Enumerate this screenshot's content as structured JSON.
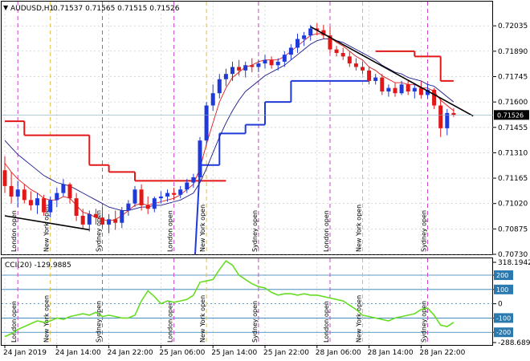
{
  "header": {
    "symbol": "AUDUSD,H1",
    "ohlc": "0.71537 0.71565 0.71515 0.71526"
  },
  "colors": {
    "bull": "#1f3ad8",
    "bear": "#e01818",
    "ma_fast": "#e01818",
    "ma_slow": "#1a1a8c",
    "stop_upper": "#e01818",
    "stop_lower": "#1f3ad8",
    "trendline": "#000000",
    "cci_line": "#66dd22",
    "cci_level": "#2a7ab0",
    "london_separator": "#cc44cc",
    "newyork_separator": "#e0c040",
    "sydney_separator": "#cc44cc",
    "grid": "#c0c0c0",
    "current_price_bg": "#000000"
  },
  "chart_data": [
    {
      "type": "candlestick",
      "title": "AUDUSD,H1",
      "y_ticks": [
        "0.72035",
        "0.71890",
        "0.71745",
        "0.71600",
        "0.71455",
        "0.71310",
        "0.71165",
        "0.71020",
        "0.70875",
        "0.70730"
      ],
      "ylim": [
        0.7073,
        0.721
      ],
      "current_price": "0.71526",
      "current_price_value": 0.71526,
      "x_ticks": [
        "24 Jan 2019",
        "24 Jan 14:00",
        "24 Jan 22:00",
        "25 Jan 06:00",
        "25 Jan 14:00",
        "25 Jan 22:00",
        "28 Jan 06:00",
        "28 Jan 14:00",
        "28 Jan 22:00"
      ],
      "session_labels": [
        {
          "label": "London open",
          "bar": 2,
          "kind": "london"
        },
        {
          "label": "New York open",
          "bar": 7,
          "kind": "newyork"
        },
        {
          "label": "Sydney open",
          "bar": 15,
          "kind": "sydney"
        },
        {
          "label": "London open",
          "bar": 26,
          "kind": "london"
        },
        {
          "label": "New York open",
          "bar": 31,
          "kind": "newyork"
        },
        {
          "label": "Sydney open",
          "bar": 39,
          "kind": "sydney"
        },
        {
          "label": "London open",
          "bar": 50,
          "kind": "london"
        },
        {
          "label": "New York open",
          "bar": 55,
          "kind": "newyork"
        },
        {
          "label": "Sydney open",
          "bar": 65,
          "kind": "sydney"
        }
      ],
      "candles": [
        {
          "o": 0.7121,
          "h": 0.7129,
          "l": 0.7108,
          "c": 0.7112
        },
        {
          "o": 0.7112,
          "h": 0.712,
          "l": 0.7102,
          "c": 0.7106
        },
        {
          "o": 0.7106,
          "h": 0.7115,
          "l": 0.71,
          "c": 0.711
        },
        {
          "o": 0.711,
          "h": 0.7113,
          "l": 0.7102,
          "c": 0.7104
        },
        {
          "o": 0.7104,
          "h": 0.7109,
          "l": 0.7098,
          "c": 0.7101
        },
        {
          "o": 0.7101,
          "h": 0.7108,
          "l": 0.7096,
          "c": 0.7105
        },
        {
          "o": 0.7105,
          "h": 0.7107,
          "l": 0.7095,
          "c": 0.7097
        },
        {
          "o": 0.7097,
          "h": 0.7106,
          "l": 0.7094,
          "c": 0.7104
        },
        {
          "o": 0.7104,
          "h": 0.7111,
          "l": 0.71,
          "c": 0.7108
        },
        {
          "o": 0.7108,
          "h": 0.7116,
          "l": 0.7106,
          "c": 0.7113
        },
        {
          "o": 0.7113,
          "h": 0.7114,
          "l": 0.7102,
          "c": 0.7105
        },
        {
          "o": 0.7105,
          "h": 0.7108,
          "l": 0.7092,
          "c": 0.7095
        },
        {
          "o": 0.7095,
          "h": 0.7099,
          "l": 0.7088,
          "c": 0.709
        },
        {
          "o": 0.709,
          "h": 0.7098,
          "l": 0.7086,
          "c": 0.7096
        },
        {
          "o": 0.7096,
          "h": 0.7099,
          "l": 0.709,
          "c": 0.7094
        },
        {
          "o": 0.7094,
          "h": 0.71,
          "l": 0.7088,
          "c": 0.709
        },
        {
          "o": 0.709,
          "h": 0.7096,
          "l": 0.7085,
          "c": 0.7093
        },
        {
          "o": 0.7093,
          "h": 0.7098,
          "l": 0.7087,
          "c": 0.7091
        },
        {
          "o": 0.7091,
          "h": 0.71,
          "l": 0.7088,
          "c": 0.7098
        },
        {
          "o": 0.7098,
          "h": 0.7104,
          "l": 0.7095,
          "c": 0.7102
        },
        {
          "o": 0.7102,
          "h": 0.7112,
          "l": 0.71,
          "c": 0.711
        },
        {
          "o": 0.711,
          "h": 0.7113,
          "l": 0.7098,
          "c": 0.7101
        },
        {
          "o": 0.7101,
          "h": 0.7106,
          "l": 0.7096,
          "c": 0.7099
        },
        {
          "o": 0.7099,
          "h": 0.7106,
          "l": 0.7097,
          "c": 0.7105
        },
        {
          "o": 0.7105,
          "h": 0.7109,
          "l": 0.7102,
          "c": 0.7106
        },
        {
          "o": 0.7106,
          "h": 0.711,
          "l": 0.7103,
          "c": 0.7108
        },
        {
          "o": 0.7108,
          "h": 0.7111,
          "l": 0.7104,
          "c": 0.7107
        },
        {
          "o": 0.7107,
          "h": 0.7112,
          "l": 0.7105,
          "c": 0.711
        },
        {
          "o": 0.711,
          "h": 0.7116,
          "l": 0.7108,
          "c": 0.7114
        },
        {
          "o": 0.7114,
          "h": 0.7119,
          "l": 0.7111,
          "c": 0.7117
        },
        {
          "o": 0.7117,
          "h": 0.714,
          "l": 0.7115,
          "c": 0.7138
        },
        {
          "o": 0.7138,
          "h": 0.716,
          "l": 0.7135,
          "c": 0.7158
        },
        {
          "o": 0.7158,
          "h": 0.717,
          "l": 0.7155,
          "c": 0.7165
        },
        {
          "o": 0.7165,
          "h": 0.7176,
          "l": 0.7162,
          "c": 0.7173
        },
        {
          "o": 0.7173,
          "h": 0.7179,
          "l": 0.7169,
          "c": 0.7176
        },
        {
          "o": 0.7176,
          "h": 0.7183,
          "l": 0.7172,
          "c": 0.718
        },
        {
          "o": 0.718,
          "h": 0.7184,
          "l": 0.7175,
          "c": 0.7178
        },
        {
          "o": 0.7178,
          "h": 0.7183,
          "l": 0.7174,
          "c": 0.7181
        },
        {
          "o": 0.7181,
          "h": 0.7185,
          "l": 0.7177,
          "c": 0.718
        },
        {
          "o": 0.718,
          "h": 0.7184,
          "l": 0.7177,
          "c": 0.7182
        },
        {
          "o": 0.7182,
          "h": 0.7187,
          "l": 0.7179,
          "c": 0.7184
        },
        {
          "o": 0.7184,
          "h": 0.7186,
          "l": 0.7179,
          "c": 0.7181
        },
        {
          "o": 0.7181,
          "h": 0.7185,
          "l": 0.7178,
          "c": 0.7183
        },
        {
          "o": 0.7183,
          "h": 0.7189,
          "l": 0.718,
          "c": 0.7187
        },
        {
          "o": 0.7187,
          "h": 0.7193,
          "l": 0.7184,
          "c": 0.7191
        },
        {
          "o": 0.7191,
          "h": 0.7199,
          "l": 0.7188,
          "c": 0.7196
        },
        {
          "o": 0.7196,
          "h": 0.72,
          "l": 0.7192,
          "c": 0.7198
        },
        {
          "o": 0.7198,
          "h": 0.7204,
          "l": 0.7195,
          "c": 0.7202
        },
        {
          "o": 0.7202,
          "h": 0.7205,
          "l": 0.7198,
          "c": 0.7201
        },
        {
          "o": 0.7201,
          "h": 0.7204,
          "l": 0.7196,
          "c": 0.7198
        },
        {
          "o": 0.7198,
          "h": 0.7203,
          "l": 0.7188,
          "c": 0.719
        },
        {
          "o": 0.719,
          "h": 0.7192,
          "l": 0.7186,
          "c": 0.7188
        },
        {
          "o": 0.7188,
          "h": 0.7191,
          "l": 0.7184,
          "c": 0.7186
        },
        {
          "o": 0.7186,
          "h": 0.7189,
          "l": 0.718,
          "c": 0.7182
        },
        {
          "o": 0.7182,
          "h": 0.7185,
          "l": 0.7178,
          "c": 0.718
        },
        {
          "o": 0.718,
          "h": 0.7183,
          "l": 0.7176,
          "c": 0.7178
        },
        {
          "o": 0.7178,
          "h": 0.718,
          "l": 0.717,
          "c": 0.7172
        },
        {
          "o": 0.7172,
          "h": 0.7176,
          "l": 0.717,
          "c": 0.7174
        },
        {
          "o": 0.7174,
          "h": 0.7176,
          "l": 0.7164,
          "c": 0.7166
        },
        {
          "o": 0.7166,
          "h": 0.717,
          "l": 0.7163,
          "c": 0.7168
        },
        {
          "o": 0.7168,
          "h": 0.7171,
          "l": 0.7163,
          "c": 0.7165
        },
        {
          "o": 0.7165,
          "h": 0.7172,
          "l": 0.7164,
          "c": 0.717
        },
        {
          "o": 0.717,
          "h": 0.7172,
          "l": 0.7164,
          "c": 0.7166
        },
        {
          "o": 0.7166,
          "h": 0.717,
          "l": 0.7162,
          "c": 0.7168
        },
        {
          "o": 0.7168,
          "h": 0.7172,
          "l": 0.7162,
          "c": 0.7164
        },
        {
          "o": 0.7164,
          "h": 0.717,
          "l": 0.7162,
          "c": 0.7167
        },
        {
          "o": 0.7167,
          "h": 0.7168,
          "l": 0.7156,
          "c": 0.7158
        },
        {
          "o": 0.7158,
          "h": 0.7162,
          "l": 0.714,
          "c": 0.7145
        },
        {
          "o": 0.7145,
          "h": 0.7156,
          "l": 0.7141,
          "c": 0.71537
        },
        {
          "o": 0.71537,
          "h": 0.71565,
          "l": 0.71515,
          "c": 0.71526
        }
      ],
      "ma_fast": [
        0.7125,
        0.712,
        0.7116,
        0.7113,
        0.711,
        0.7108,
        0.7105,
        0.7104,
        0.7104,
        0.7106,
        0.7105,
        0.7101,
        0.7097,
        0.7096,
        0.7094,
        0.7093,
        0.7092,
        0.7093,
        0.7095,
        0.7098,
        0.7101,
        0.7102,
        0.7101,
        0.7102,
        0.7103,
        0.7104,
        0.7105,
        0.7107,
        0.711,
        0.7113,
        0.7122,
        0.7136,
        0.7148,
        0.716,
        0.7168,
        0.7174,
        0.7177,
        0.718,
        0.7181,
        0.7183,
        0.7184,
        0.7184,
        0.7184,
        0.7186,
        0.7189,
        0.7192,
        0.7195,
        0.7198,
        0.7199,
        0.7199,
        0.7197,
        0.7194,
        0.7192,
        0.7189,
        0.7186,
        0.7184,
        0.718,
        0.7178,
        0.7175,
        0.7173,
        0.7171,
        0.7171,
        0.717,
        0.717,
        0.7168,
        0.7168,
        0.7166,
        0.7161,
        0.7158,
        0.7155
      ],
      "ma_slow": [
        0.7138,
        0.7134,
        0.713,
        0.7127,
        0.7124,
        0.7121,
        0.7118,
        0.7116,
        0.7114,
        0.7113,
        0.7112,
        0.711,
        0.7108,
        0.7106,
        0.7104,
        0.7102,
        0.71,
        0.7099,
        0.7098,
        0.7098,
        0.7099,
        0.71,
        0.71,
        0.7101,
        0.7101,
        0.7102,
        0.7103,
        0.7104,
        0.7106,
        0.7108,
        0.7114,
        0.7122,
        0.7131,
        0.714,
        0.7148,
        0.7155,
        0.7161,
        0.7166,
        0.7169,
        0.7172,
        0.7175,
        0.7177,
        0.7179,
        0.7181,
        0.7184,
        0.7187,
        0.719,
        0.7193,
        0.7195,
        0.7196,
        0.7196,
        0.7195,
        0.7194,
        0.7192,
        0.719,
        0.7188,
        0.7186,
        0.7184,
        0.7181,
        0.7179,
        0.7177,
        0.7176,
        0.7174,
        0.7173,
        0.7172,
        0.717,
        0.7169,
        0.7166,
        0.7163,
        0.716
      ],
      "stop_upper": [
        {
          "from": 0,
          "to": 3,
          "v": 0.7149
        },
        {
          "from": 3,
          "to": 13,
          "v": 0.7141
        },
        {
          "from": 13,
          "to": 16,
          "v": 0.7124
        },
        {
          "from": 16,
          "to": 20,
          "v": 0.712
        },
        {
          "from": 20,
          "to": 34,
          "v": 0.7115
        },
        {
          "from": 57,
          "to": 63,
          "v": 0.7189
        },
        {
          "from": 63,
          "to": 67,
          "v": 0.7186
        },
        {
          "from": 67,
          "to": 69,
          "v": 0.7172
        }
      ],
      "stop_lower": [
        {
          "from": 30,
          "to": 33,
          "v": 0.7124
        },
        {
          "from": 33,
          "to": 37,
          "v": 0.7142
        },
        {
          "from": 37,
          "to": 40,
          "v": 0.7147
        },
        {
          "from": 40,
          "to": 44,
          "v": 0.716
        },
        {
          "from": 44,
          "to": 56,
          "v": 0.7172
        }
      ],
      "trendlines": [
        {
          "x1": 0,
          "y1": 0.7095,
          "x2": 13,
          "y2": 0.7087
        },
        {
          "x1": 47,
          "y1": 0.7203,
          "x2": 72,
          "y2": 0.7152
        }
      ]
    },
    {
      "type": "line",
      "title": "CCI(20) -129.9885",
      "y_ticks": [
        "318.1942",
        "200",
        "100",
        "0",
        "-100",
        "-200",
        "-288.6899"
      ],
      "highlight_ticks": [
        "200",
        "100",
        "-100",
        "-200"
      ],
      "ylim": [
        -288.6899,
        318.1942
      ],
      "levels": [
        200,
        100,
        0,
        -100,
        -200
      ],
      "values": [
        -230,
        -210,
        -180,
        -160,
        -140,
        -120,
        -130,
        -120,
        -100,
        -110,
        -90,
        -80,
        -70,
        -80,
        -60,
        -90,
        -80,
        -90,
        -100,
        -100,
        -80,
        20,
        90,
        50,
        0,
        20,
        10,
        20,
        30,
        60,
        150,
        160,
        170,
        240,
        300,
        270,
        200,
        170,
        140,
        120,
        110,
        80,
        60,
        70,
        70,
        60,
        70,
        60,
        60,
        50,
        40,
        30,
        20,
        -10,
        -40,
        -80,
        -90,
        -100,
        -110,
        -120,
        -100,
        -90,
        -80,
        -70,
        -40,
        -30,
        -80,
        -150,
        -160,
        -130
      ]
    }
  ]
}
